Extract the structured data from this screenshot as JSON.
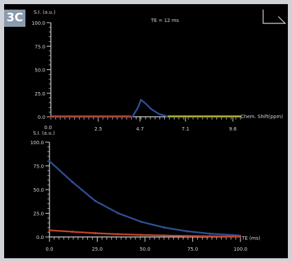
{
  "panel_label": "3C",
  "colors": {
    "background": "#000000",
    "axis": "#d8d8d8",
    "series_blue": "#2f4f96",
    "series_red": "#c0442a",
    "panel_tag": "#8a9bad",
    "frame": "#cfd3d8"
  },
  "icons": [
    "corner-bracket-icon"
  ],
  "chart_data": [
    {
      "type": "line",
      "title": "TE = 12 ms",
      "ylabel": "S.I. (a.u.)",
      "xlabel": "Chem. Shift(ppm)",
      "xlim": [
        0,
        10
      ],
      "ylim": [
        0,
        100
      ],
      "x_ticks": [
        "2.5",
        "4.7",
        "7.1",
        "9.6"
      ],
      "x_tick_values": [
        2.5,
        4.7,
        7.1,
        9.6
      ],
      "x_first_tick": "0.0",
      "y_ticks": [
        "100.0",
        "75.0",
        "50.0",
        "25.0",
        "0.0"
      ],
      "y_tick_values": [
        100,
        75,
        50,
        25,
        0
      ],
      "grid": false,
      "series": [
        {
          "color": "#2f4f96",
          "x": [
            0,
            4.3,
            4.6,
            4.75,
            5.0,
            5.3,
            5.7,
            6.2,
            10
          ],
          "y": [
            0,
            0,
            10,
            18,
            14,
            8,
            3,
            0,
            0
          ]
        },
        {
          "color": "#c0442a",
          "x": [
            0,
            4.2
          ],
          "y": [
            0.5,
            0.5
          ]
        },
        {
          "color": "#b8b428",
          "x": [
            6.2,
            10
          ],
          "y": [
            0.5,
            0.5
          ]
        }
      ]
    },
    {
      "type": "line",
      "ylabel": "S.I. (a.u.)",
      "xlabel": "TE (ms)",
      "xlim": [
        0,
        100
      ],
      "ylim": [
        0,
        100
      ],
      "x_ticks": [
        "0.0",
        "25.0",
        "50.0",
        "75.0",
        "100.0"
      ],
      "x_tick_values": [
        0,
        25,
        50,
        75,
        100
      ],
      "y_ticks": [
        "100.0",
        "75.0",
        "50.0",
        "25.0",
        "0.0"
      ],
      "y_tick_values": [
        100,
        75,
        50,
        25,
        0
      ],
      "grid": false,
      "series": [
        {
          "color": "#2f4f96",
          "x": [
            0,
            12,
            24,
            36,
            48,
            60,
            72,
            84,
            96,
            100
          ],
          "y": [
            80,
            58,
            38,
            25,
            16,
            10,
            6,
            3.5,
            2,
            1.5
          ]
        },
        {
          "color": "#c0442a",
          "x": [
            0,
            12,
            24,
            36,
            48,
            60,
            72,
            84,
            96,
            100
          ],
          "y": [
            7,
            5.5,
            4,
            3,
            2.2,
            1.6,
            1.1,
            0.8,
            0.5,
            0.4
          ]
        }
      ]
    }
  ]
}
